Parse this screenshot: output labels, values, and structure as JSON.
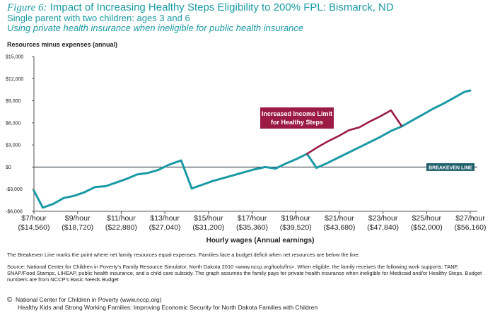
{
  "header": {
    "figure_label": "Figure 6:",
    "title": "Impact of Increasing Healthy Steps Eligibility to 200% FPL: Bismarck, ND",
    "subtitle1": "Single parent with two children: ages 3 and 6",
    "subtitle2": "Using private health insurance when ineligible for public health insurance"
  },
  "notes": {
    "breakeven": "The Breakeven Line marks the point where net family resources equal expenses. Families face a budget deficit when net resources are below the line.",
    "source": "Source: National Center for Children in Poverty's Family Resource Simulator, North Dakota 2010 <www.nccp.org/tools/frs>. When eligible, the family receives the following work supports: TANF, SNAP/Food Stamps, LIHEAP, public health insurance, and a child care subsidy. The graph assumes the family pays for private health insurance when ineligible for Medicaid and/or Healthy Steps. Budget numbers are from NCCP's Basic Needs Budget"
  },
  "footer": {
    "copyright_symbol": "©",
    "org": "National Center for Children in Poverty (www.nccp.org)",
    "publication": "Healthy Kids and Strong Working Families: Improving Economic Security for North Dakota Families with Children"
  },
  "colors": {
    "teal": "#1a9aa4",
    "maroon": "#9b1b45",
    "axis": "#555555",
    "text": "#222222"
  },
  "chart_data": {
    "type": "line",
    "ylabel": "Resources minus expenses (annual)",
    "xlabel": "Hourly wages (Annual earnings)",
    "xlim": [
      14560,
      56160
    ],
    "ylim": [
      -6000,
      15000
    ],
    "yticks": [
      {
        "value": -6000,
        "label": "-$6,000"
      },
      {
        "value": -3000,
        "label": "-$3,000"
      },
      {
        "value": 0,
        "label": "$0"
      },
      {
        "value": 3000,
        "label": "$3,000"
      },
      {
        "value": 6000,
        "label": "$6,000"
      },
      {
        "value": 9000,
        "label": "$9,000"
      },
      {
        "value": 12000,
        "label": "$12,000"
      },
      {
        "value": 15000,
        "label": "$15,000"
      }
    ],
    "xticks": [
      {
        "value": 14560,
        "label1": "$7/hour",
        "label2": "($14,560)"
      },
      {
        "value": 18720,
        "label1": "$9/hour",
        "label2": "($18,720)"
      },
      {
        "value": 22880,
        "label1": "$11/hour",
        "label2": "($22,880)"
      },
      {
        "value": 27040,
        "label1": "$13/hour",
        "label2": "($27,040)"
      },
      {
        "value": 31200,
        "label1": "$15/hour",
        "label2": "($31,200)"
      },
      {
        "value": 35360,
        "label1": "$17/hour",
        "label2": "($35,360)"
      },
      {
        "value": 39520,
        "label1": "$19/hour",
        "label2": "($39,520)"
      },
      {
        "value": 43680,
        "label1": "$21/hour",
        "label2": "($43,680)"
      },
      {
        "value": 47840,
        "label1": "$23/hour",
        "label2": "($47,840)"
      },
      {
        "value": 52000,
        "label1": "$25/hour",
        "label2": "($52,000)"
      },
      {
        "value": 56160,
        "label1": "$27/hour",
        "label2": "($56,160)"
      }
    ],
    "breakeven_label": "BREAKEVEN LINE",
    "series": [
      {
        "color": "#1a9aa4",
        "points": [
          [
            14560,
            -3200
          ],
          [
            15400,
            -5500
          ],
          [
            16400,
            -5000
          ],
          [
            17400,
            -4200
          ],
          [
            18400,
            -3900
          ],
          [
            19400,
            -3400
          ],
          [
            20400,
            -2700
          ],
          [
            21400,
            -2600
          ],
          [
            22400,
            -2100
          ],
          [
            23400,
            -1600
          ],
          [
            24400,
            -1000
          ],
          [
            25400,
            -800
          ],
          [
            26400,
            -400
          ],
          [
            27400,
            300
          ],
          [
            28600,
            900
          ],
          [
            29600,
            -2900
          ],
          [
            30600,
            -2400
          ],
          [
            31600,
            -1900
          ],
          [
            32600,
            -1500
          ],
          [
            33600,
            -1100
          ],
          [
            34600,
            -700
          ],
          [
            35600,
            -300
          ],
          [
            36600,
            0
          ],
          [
            37600,
            -200
          ],
          [
            38600,
            500
          ],
          [
            39600,
            1100
          ],
          [
            40600,
            1800
          ],
          [
            41500,
            -100
          ],
          [
            42600,
            600
          ],
          [
            43600,
            1300
          ],
          [
            44600,
            2000
          ],
          [
            45600,
            2700
          ],
          [
            46600,
            3400
          ],
          [
            47600,
            4100
          ],
          [
            48600,
            4900
          ],
          [
            49600,
            5500
          ],
          [
            50600,
            6300
          ],
          [
            51600,
            7100
          ],
          [
            52600,
            7900
          ],
          [
            53600,
            8600
          ],
          [
            54600,
            9400
          ],
          [
            55600,
            10200
          ],
          [
            56160,
            10400
          ]
        ]
      },
      {
        "name": "Increased Income Limit for Healthy Steps",
        "color": "#9b1b45",
        "points": [
          [
            40600,
            1800
          ],
          [
            41600,
            2700
          ],
          [
            42600,
            3500
          ],
          [
            43600,
            4200
          ],
          [
            44600,
            5000
          ],
          [
            45600,
            5400
          ],
          [
            46600,
            6200
          ],
          [
            47600,
            6900
          ],
          [
            48600,
            7700
          ],
          [
            49600,
            5600
          ]
        ]
      }
    ],
    "annotation": {
      "line1": "Increased Income Limit",
      "line2": "for Healthy Steps"
    }
  }
}
